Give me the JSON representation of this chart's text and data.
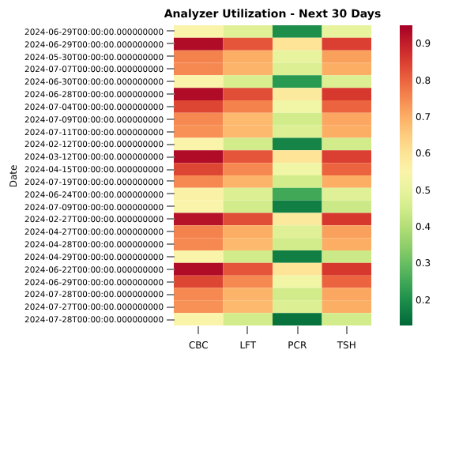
{
  "chart_data": {
    "type": "heatmap",
    "title": "Analyzer Utilization - Next 30 Days",
    "ylabel": "Date",
    "categories": [
      "CBC",
      "LFT",
      "PCR",
      "TSH"
    ],
    "y_categories": [
      "2024-06-29T00:00:00.000000000",
      "2024-06-29T00:00:00.000000000",
      "2024-05-30T00:00:00.000000000",
      "2024-07-07T00:00:00.000000000",
      "2024-06-30T00:00:00.000000000",
      "2024-06-28T00:00:00.000000000",
      "2024-07-04T00:00:00.000000000",
      "2024-07-09T00:00:00.000000000",
      "2024-07-11T00:00:00.000000000",
      "2024-02-12T00:00:00.000000000",
      "2024-03-12T00:00:00.000000000",
      "2024-04-15T00:00:00.000000000",
      "2024-07-19T00:00:00.000000000",
      "2024-06-24T00:00:00.000000000",
      "2024-07-09T00:00:00.000000000",
      "2024-02-27T00:00:00.000000000",
      "2024-04-27T00:00:00.000000000",
      "2024-04-28T00:00:00.000000000",
      "2024-04-29T00:00:00.000000000",
      "2024-06-22T00:00:00.000000000",
      "2024-06-29T00:00:00.000000000",
      "2024-07-28T00:00:00.000000000",
      "2024-07-27T00:00:00.000000000",
      "2024-07-28T00:00:00.000000000"
    ],
    "cells": [
      [
        0.55,
        0.48,
        0.2,
        0.5
      ],
      [
        0.93,
        0.82,
        0.6,
        0.85
      ],
      [
        0.76,
        0.7,
        0.5,
        0.72
      ],
      [
        0.75,
        0.69,
        0.47,
        0.7
      ],
      [
        0.55,
        0.46,
        0.22,
        0.47
      ],
      [
        0.93,
        0.83,
        0.58,
        0.86
      ],
      [
        0.84,
        0.76,
        0.52,
        0.8
      ],
      [
        0.75,
        0.68,
        0.45,
        0.71
      ],
      [
        0.74,
        0.68,
        0.47,
        0.7
      ],
      [
        0.55,
        0.45,
        0.18,
        0.45
      ],
      [
        0.93,
        0.82,
        0.6,
        0.85
      ],
      [
        0.84,
        0.75,
        0.52,
        0.8
      ],
      [
        0.75,
        0.69,
        0.45,
        0.7
      ],
      [
        0.56,
        0.47,
        0.25,
        0.48
      ],
      [
        0.55,
        0.45,
        0.17,
        0.44
      ],
      [
        0.92,
        0.83,
        0.58,
        0.86
      ],
      [
        0.76,
        0.7,
        0.48,
        0.72
      ],
      [
        0.75,
        0.68,
        0.45,
        0.7
      ],
      [
        0.55,
        0.45,
        0.17,
        0.44
      ],
      [
        0.93,
        0.82,
        0.6,
        0.86
      ],
      [
        0.84,
        0.75,
        0.52,
        0.8
      ],
      [
        0.75,
        0.69,
        0.45,
        0.71
      ],
      [
        0.74,
        0.68,
        0.47,
        0.7
      ],
      [
        0.55,
        0.45,
        0.15,
        0.45
      ]
    ],
    "clim": [
      0.13,
      0.95
    ],
    "cticks": [
      0.2,
      0.3,
      0.4,
      0.5,
      0.6,
      0.7,
      0.8,
      0.9
    ]
  }
}
